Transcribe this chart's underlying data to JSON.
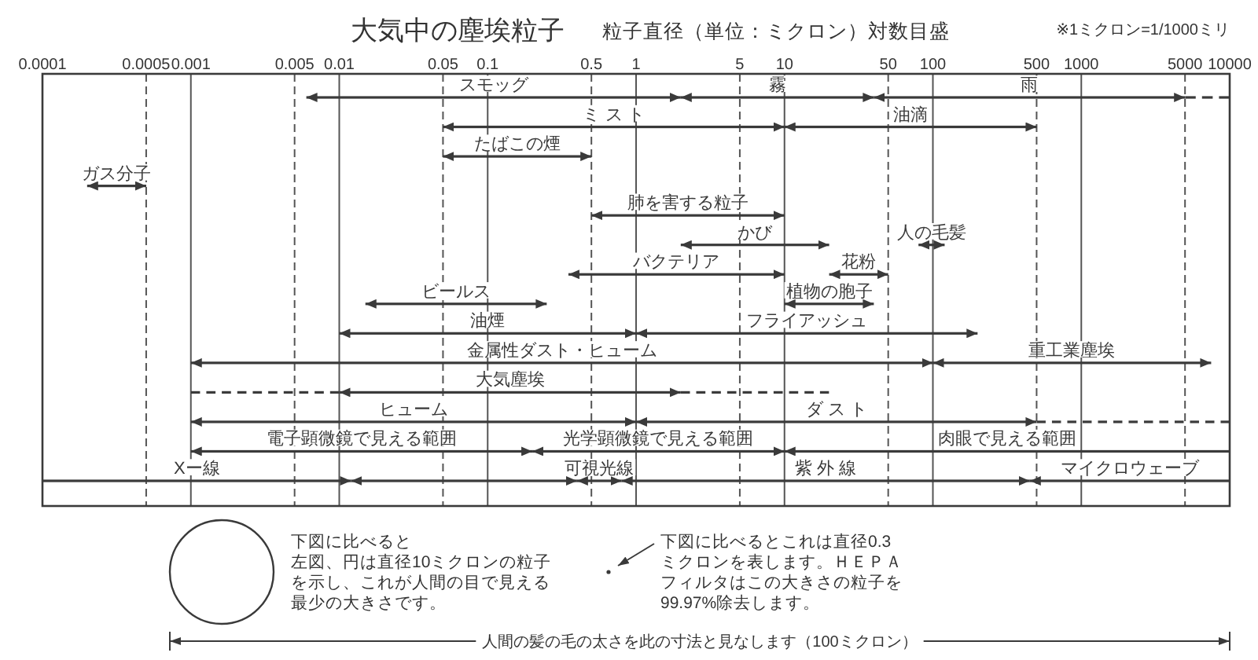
{
  "chart_data": {
    "type": "bar",
    "orientation": "horizontal",
    "title": "大気中の塵埃粒子",
    "xlabel": "粒子直径（単位：ミクロン）対数目盛",
    "log": "x",
    "xlim": [
      0.0001,
      10000
    ],
    "xticks": [
      0.0001,
      0.0005,
      0.001,
      0.005,
      0.01,
      0.05,
      0.1,
      0.5,
      1,
      5,
      10,
      50,
      100,
      500,
      1000,
      5000,
      10000
    ],
    "grid": "x",
    "categories": [
      null,
      null,
      null,
      null,
      null,
      null,
      null,
      null,
      null,
      null,
      null,
      null,
      null,
      null
    ],
    "series": [
      {
        "name": "スモッグ",
        "color": "#3a3a3a",
        "values": [
          1.994,
          null,
          null,
          null,
          null,
          null,
          null,
          null,
          null,
          null,
          null,
          null,
          null,
          null
        ],
        "base": [
          0.006,
          null,
          null,
          null,
          null,
          null,
          null,
          null,
          null,
          null,
          null,
          null,
          null,
          null
        ]
      },
      {
        "name": "霧",
        "color": "#3a3a3a",
        "values": [
          38,
          null,
          null,
          null,
          null,
          null,
          null,
          null,
          null,
          null,
          null,
          null,
          null,
          null
        ],
        "base": [
          2,
          null,
          null,
          null,
          null,
          null,
          null,
          null,
          null,
          null,
          null,
          null,
          null,
          null
        ]
      },
      {
        "name": "雨",
        "color": "#3a3a3a",
        "values": [
          4960,
          null,
          null,
          null,
          null,
          null,
          null,
          null,
          null,
          null,
          null,
          null,
          null,
          null
        ],
        "base": [
          40,
          null,
          null,
          null,
          null,
          null,
          null,
          null,
          null,
          null,
          null,
          null,
          null,
          null
        ]
      },
      {
        "color": "#3a3a3a",
        "line_style": "dashed",
        "values": [
          5000,
          null,
          null,
          null,
          null,
          null,
          null,
          null,
          null,
          null,
          null,
          null,
          null,
          null
        ],
        "base": [
          5000,
          null,
          null,
          null,
          null,
          null,
          null,
          null,
          null,
          null,
          null,
          null,
          null,
          null
        ]
      },
      {
        "name": "ミ ス ト",
        "color": "#3a3a3a",
        "values": [
          null,
          9.95,
          null,
          null,
          null,
          null,
          null,
          null,
          null,
          null,
          null,
          null,
          null,
          null
        ],
        "base": [
          null,
          0.05,
          null,
          null,
          null,
          null,
          null,
          null,
          null,
          null,
          null,
          null,
          null,
          null
        ]
      },
      {
        "name": "油滴",
        "color": "#3a3a3a",
        "values": [
          null,
          490,
          null,
          null,
          null,
          null,
          null,
          null,
          null,
          null,
          null,
          null,
          null,
          null
        ],
        "base": [
          null,
          10,
          null,
          null,
          null,
          null,
          null,
          null,
          null,
          null,
          null,
          null,
          null,
          null
        ]
      },
      {
        "name": "たばこの煙",
        "color": "#3a3a3a",
        "values": [
          null,
          null,
          0.45,
          null,
          null,
          null,
          null,
          null,
          null,
          null,
          null,
          null,
          null,
          null
        ],
        "base": [
          null,
          null,
          0.05,
          null,
          null,
          null,
          null,
          null,
          null,
          null,
          null,
          null,
          null,
          null
        ]
      },
      {
        "name": "ガス分子",
        "color": "#3a3a3a",
        "values": [
          null,
          null,
          null,
          0.0003,
          null,
          null,
          null,
          null,
          null,
          null,
          null,
          null,
          null,
          null
        ],
        "base": [
          null,
          null,
          null,
          0.0002,
          null,
          null,
          null,
          null,
          null,
          null,
          null,
          null,
          null,
          null
        ]
      },
      {
        "name": "肺を害する粒子",
        "color": "#3a3a3a",
        "values": [
          null,
          null,
          null,
          null,
          9.5,
          null,
          null,
          null,
          null,
          null,
          null,
          null,
          null,
          null
        ],
        "base": [
          null,
          null,
          null,
          null,
          0.5,
          null,
          null,
          null,
          null,
          null,
          null,
          null,
          null,
          null
        ]
      },
      {
        "name": "かび",
        "color": "#3a3a3a",
        "values": [
          null,
          null,
          null,
          null,
          null,
          18,
          null,
          null,
          null,
          null,
          null,
          null,
          null,
          null
        ],
        "base": [
          null,
          null,
          null,
          null,
          null,
          2,
          null,
          null,
          null,
          null,
          null,
          null,
          null,
          null
        ]
      },
      {
        "name": "人の毛髪",
        "color": "#3a3a3a",
        "values": [
          null,
          null,
          null,
          null,
          null,
          40,
          null,
          null,
          null,
          null,
          null,
          null,
          null,
          null
        ],
        "base": [
          null,
          null,
          null,
          null,
          null,
          80,
          null,
          null,
          null,
          null,
          null,
          null,
          null,
          null
        ]
      },
      {
        "name": "バクテリア",
        "color": "#3a3a3a",
        "values": [
          null,
          null,
          null,
          null,
          null,
          null,
          9.65,
          null,
          null,
          null,
          null,
          null,
          null,
          null
        ],
        "base": [
          null,
          null,
          null,
          null,
          null,
          null,
          0.35,
          null,
          null,
          null,
          null,
          null,
          null,
          null
        ]
      },
      {
        "name": "花粉",
        "color": "#3a3a3a",
        "values": [
          null,
          null,
          null,
          null,
          null,
          null,
          30,
          null,
          null,
          null,
          null,
          null,
          null,
          null
        ],
        "base": [
          null,
          null,
          null,
          null,
          null,
          null,
          20,
          null,
          null,
          null,
          null,
          null,
          null,
          null
        ]
      },
      {
        "name": "ビールス",
        "color": "#3a3a3a",
        "values": [
          null,
          null,
          null,
          null,
          null,
          null,
          null,
          0.235,
          null,
          null,
          null,
          null,
          null,
          null
        ],
        "base": [
          null,
          null,
          null,
          null,
          null,
          null,
          null,
          0.015,
          null,
          null,
          null,
          null,
          null,
          null
        ]
      },
      {
        "name": "植物の胞子",
        "color": "#3a3a3a",
        "values": [
          null,
          null,
          null,
          null,
          null,
          null,
          null,
          30,
          null,
          null,
          null,
          null,
          null,
          null
        ],
        "base": [
          null,
          null,
          null,
          null,
          null,
          null,
          null,
          10,
          null,
          null,
          null,
          null,
          null,
          null
        ]
      },
      {
        "name": "油煙",
        "color": "#3a3a3a",
        "values": [
          null,
          null,
          null,
          null,
          null,
          null,
          null,
          null,
          0.99,
          null,
          null,
          null,
          null,
          null
        ],
        "base": [
          null,
          null,
          null,
          null,
          null,
          null,
          null,
          null,
          0.01,
          null,
          null,
          null,
          null,
          null
        ]
      },
      {
        "name": "フライアッシュ",
        "color": "#3a3a3a",
        "values": [
          null,
          null,
          null,
          null,
          null,
          null,
          null,
          null,
          199,
          null,
          null,
          null,
          null,
          null
        ],
        "base": [
          null,
          null,
          null,
          null,
          null,
          null,
          null,
          null,
          1,
          null,
          null,
          null,
          null,
          null
        ]
      },
      {
        "name": "金属性ダスト・ヒューム",
        "color": "#3a3a3a",
        "values": [
          null,
          null,
          null,
          null,
          null,
          null,
          null,
          null,
          null,
          99.999,
          null,
          null,
          null,
          null
        ],
        "base": [
          null,
          null,
          null,
          null,
          null,
          null,
          null,
          null,
          null,
          0.001,
          null,
          null,
          null,
          null
        ]
      },
      {
        "name": "重工業塵埃",
        "color": "#3a3a3a",
        "values": [
          null,
          null,
          null,
          null,
          null,
          null,
          null,
          null,
          null,
          7400,
          null,
          null,
          null,
          null
        ],
        "base": [
          null,
          null,
          null,
          null,
          null,
          null,
          null,
          null,
          null,
          100,
          null,
          null,
          null,
          null
        ]
      },
      {
        "color": "#3a3a3a",
        "line_style": "dashed",
        "values": [
          null,
          null,
          null,
          null,
          null,
          null,
          null,
          null,
          null,
          null,
          0.009,
          null,
          null,
          null
        ],
        "base": [
          null,
          null,
          null,
          null,
          null,
          null,
          null,
          null,
          null,
          null,
          0.001,
          null,
          null,
          null
        ]
      },
      {
        "name": "大気塵埃",
        "color": "#3a3a3a",
        "values": [
          null,
          null,
          null,
          null,
          null,
          null,
          null,
          null,
          null,
          null,
          1.99,
          null,
          null,
          null
        ],
        "base": [
          null,
          null,
          null,
          null,
          null,
          null,
          null,
          null,
          null,
          null,
          0.01,
          null,
          null,
          null
        ]
      },
      {
        "color": "#3a3a3a",
        "line_style": "dashed",
        "values": [
          null,
          null,
          null,
          null,
          null,
          null,
          null,
          null,
          null,
          null,
          18,
          null,
          null,
          null
        ],
        "base": [
          null,
          null,
          null,
          null,
          null,
          null,
          null,
          null,
          null,
          null,
          2,
          null,
          null,
          null
        ]
      },
      {
        "name": "ヒューム",
        "color": "#3a3a3a",
        "values": [
          null,
          null,
          null,
          null,
          null,
          null,
          null,
          null,
          null,
          null,
          null,
          0.999,
          null,
          null
        ],
        "base": [
          null,
          null,
          null,
          null,
          null,
          null,
          null,
          null,
          null,
          null,
          null,
          0.001,
          null,
          null
        ]
      },
      {
        "name": "ダ ス ト",
        "color": "#3a3a3a",
        "values": [
          null,
          null,
          null,
          null,
          null,
          null,
          null,
          null,
          null,
          null,
          null,
          499,
          null,
          null
        ],
        "base": [
          null,
          null,
          null,
          null,
          null,
          null,
          null,
          null,
          null,
          null,
          null,
          1,
          null,
          null
        ]
      },
      {
        "color": "#3a3a3a",
        "line_style": "dashed",
        "values": [
          null,
          null,
          null,
          null,
          null,
          null,
          null,
          null,
          null,
          null,
          null,
          9500,
          null,
          null
        ],
        "base": [
          null,
          null,
          null,
          null,
          null,
          null,
          null,
          null,
          null,
          null,
          null,
          500,
          null,
          null
        ]
      },
      {
        "name": "電子顕微鏡で見える範囲",
        "color": "#3a3a3a",
        "values": [
          null,
          null,
          null,
          null,
          null,
          null,
          null,
          null,
          null,
          null,
          null,
          null,
          0.199,
          null
        ],
        "base": [
          null,
          null,
          null,
          null,
          null,
          null,
          null,
          null,
          null,
          null,
          null,
          null,
          0.001,
          null
        ]
      },
      {
        "name": "光学顕微鏡で見える範囲",
        "color": "#3a3a3a",
        "values": [
          null,
          null,
          null,
          null,
          null,
          null,
          null,
          null,
          null,
          null,
          null,
          null,
          9.8,
          null
        ],
        "base": [
          null,
          null,
          null,
          null,
          null,
          null,
          null,
          null,
          null,
          null,
          null,
          null,
          0.2,
          null
        ]
      },
      {
        "name": "肉眼で見える範囲",
        "color": "#3a3a3a",
        "values": [
          null,
          null,
          null,
          null,
          null,
          null,
          null,
          null,
          null,
          null,
          null,
          null,
          9990,
          null
        ],
        "base": [
          null,
          null,
          null,
          null,
          null,
          null,
          null,
          null,
          null,
          null,
          null,
          null,
          10,
          null
        ]
      },
      {
        "name": "Xー線",
        "color": "#3a3a3a",
        "values": [
          null,
          null,
          null,
          null,
          null,
          null,
          null,
          null,
          null,
          null,
          null,
          null,
          null,
          0.0119
        ],
        "base": [
          null,
          null,
          null,
          null,
          null,
          null,
          null,
          null,
          null,
          null,
          null,
          null,
          null,
          0.0001
        ]
      },
      {
        "color": "#3a3a3a",
        "values": [
          null,
          null,
          null,
          null,
          null,
          null,
          null,
          null,
          null,
          null,
          null,
          null,
          null,
          0.388
        ],
        "base": [
          null,
          null,
          null,
          null,
          null,
          null,
          null,
          null,
          null,
          null,
          null,
          null,
          null,
          0.012
        ]
      },
      {
        "name": "可視光線",
        "color": "#3a3a3a",
        "values": [
          null,
          null,
          null,
          null,
          null,
          null,
          null,
          null,
          null,
          null,
          null,
          null,
          null,
          0.4
        ],
        "base": [
          null,
          null,
          null,
          null,
          null,
          null,
          null,
          null,
          null,
          null,
          null,
          null,
          null,
          0.4
        ]
      },
      {
        "name": "紫 外 線",
        "color": "#3a3a3a",
        "values": [
          null,
          null,
          null,
          null,
          null,
          null,
          null,
          null,
          null,
          null,
          null,
          null,
          null,
          449.2
        ],
        "base": [
          null,
          null,
          null,
          null,
          null,
          null,
          null,
          null,
          null,
          null,
          null,
          null,
          null,
          0.8
        ]
      },
      {
        "name": "マイクロウェーブ",
        "color": "#3a3a3a",
        "values": [
          null,
          null,
          null,
          null,
          null,
          null,
          null,
          null,
          null,
          null,
          null,
          null,
          null,
          9550
        ],
        "base": [
          null,
          null,
          null,
          null,
          null,
          null,
          null,
          null,
          null,
          null,
          null,
          null,
          null,
          450
        ]
      }
    ],
    "annotations": [
      "※1ミクロン=1/1000ミリ",
      "下図に比べると",
      "左図、円は直径10ミクロンの粒子を示し、これが人間の目で見える最少の大きさです。",
      "下図に比べるとこれは直径0.3ミクロンを表します。ＨＥＰＡフィルタはこの大きさの粒子を99.97%除去します。",
      "人間の髪の毛の太さを此の寸法と見なします（100ミクロン）"
    ]
  }
}
